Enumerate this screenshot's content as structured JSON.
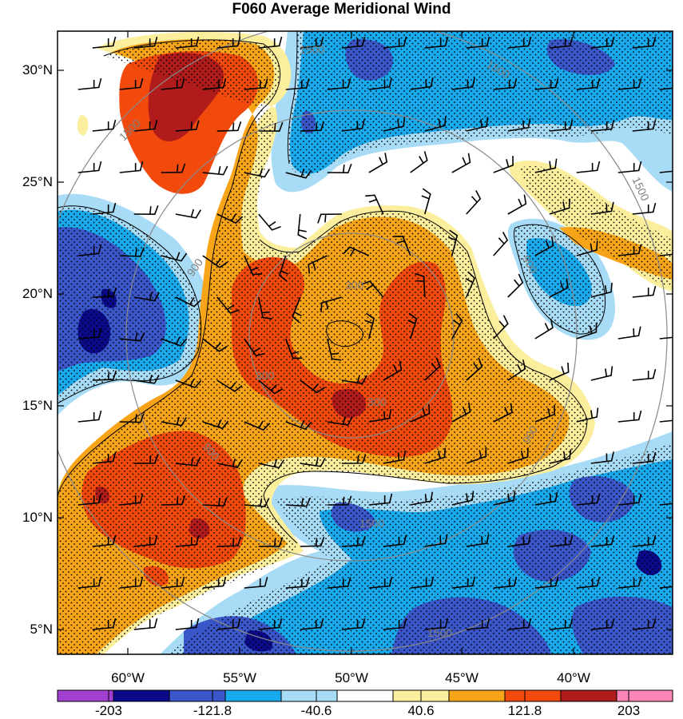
{
  "title": "F060 Average Meridional Wind",
  "map": {
    "lat_labels": [
      "30°N",
      "25°N",
      "20°N",
      "15°N",
      "10°N",
      "5°N"
    ],
    "lon_labels": [
      "60°W",
      "55°W",
      "50°W",
      "45°W",
      "40°W"
    ],
    "range_ring_labels": [
      "300",
      "300",
      "300",
      "900",
      "900",
      "900",
      "900",
      "1500",
      "1500",
      "1500",
      "1500",
      "1500",
      "1500"
    ],
    "stipple": "dotted regions"
  },
  "colorbar": {
    "labels": [
      "-203",
      "-121.8",
      "-40.6",
      "40.6",
      "121.8",
      "203"
    ],
    "colors": [
      "#a33fd0",
      "#0a0a8a",
      "#3a56c8",
      "#19aaee",
      "#a8dcf6",
      "#ffffff",
      "#fbee9c",
      "#f8a418",
      "#f24a0c",
      "#b01c1c",
      "#ff86b8"
    ]
  }
}
